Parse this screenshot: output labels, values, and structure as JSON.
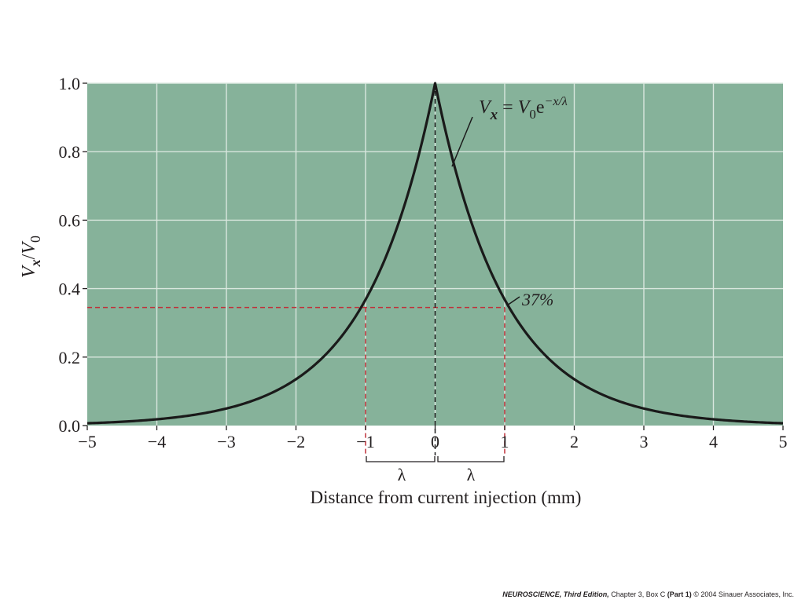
{
  "chart_data": {
    "type": "line",
    "title": "",
    "xlabel": "Distance from current injection (mm)",
    "ylabel": "Vx/V0",
    "ylabel_parts": {
      "v1": "V",
      "sub1": "x",
      "slash": "/",
      "v2": "V",
      "sub2": "0"
    },
    "xlim": [
      -5,
      5
    ],
    "ylim": [
      0,
      1
    ],
    "xticks": [
      -5,
      -4,
      -3,
      -2,
      -1,
      0,
      1,
      2,
      3,
      4,
      5
    ],
    "xtick_labels": [
      "−5",
      "−4",
      "−3",
      "−2",
      "−1",
      "0",
      "1",
      "2",
      "3",
      "4",
      "5"
    ],
    "yticks": [
      0,
      0.2,
      0.4,
      0.6,
      0.8,
      1.0
    ],
    "ytick_labels": [
      "0.0",
      "0.2",
      "0.4",
      "0.6",
      "0.8",
      "1.0"
    ],
    "grid": true,
    "series": [
      {
        "name": "Vx = V0 e^(-x/λ)",
        "function": "exp(-|x|/lambda)",
        "lambda": 1,
        "peak": 1.0,
        "x": [
          -5,
          -4,
          -3,
          -2,
          -1,
          0,
          1,
          2,
          3,
          4,
          5
        ],
        "values": [
          0.007,
          0.018,
          0.05,
          0.135,
          0.368,
          1.0,
          0.368,
          0.135,
          0.05,
          0.018,
          0.007
        ]
      }
    ],
    "reference_lines": {
      "level_value": 0.345,
      "lambda_points": [
        -1,
        1
      ],
      "center_x": 0
    },
    "annotations": {
      "equation": {
        "lhs_v": "V",
        "lhs_sub": "x",
        "eq": " = ",
        "rhs_v": "V",
        "rhs_sub": "0",
        "e": "e",
        "exponent": "−x/λ"
      },
      "percent_label": "37%",
      "lambda_left": "λ",
      "lambda_right": "λ"
    },
    "colors": {
      "plot_bg": "#86b29a",
      "grid": "#d9e7de",
      "curve": "#1a1a1a",
      "reference": "#c0303a",
      "center_line": "#1a1a1a",
      "text": "#231f20"
    }
  },
  "credit": {
    "book": "NEUROSCIENCE, Third Edition,",
    "chapter": " Chapter 3, Box C",
    "part": " (Part 1)",
    "copyright": "  © 2004 Sinauer Associates, Inc."
  }
}
